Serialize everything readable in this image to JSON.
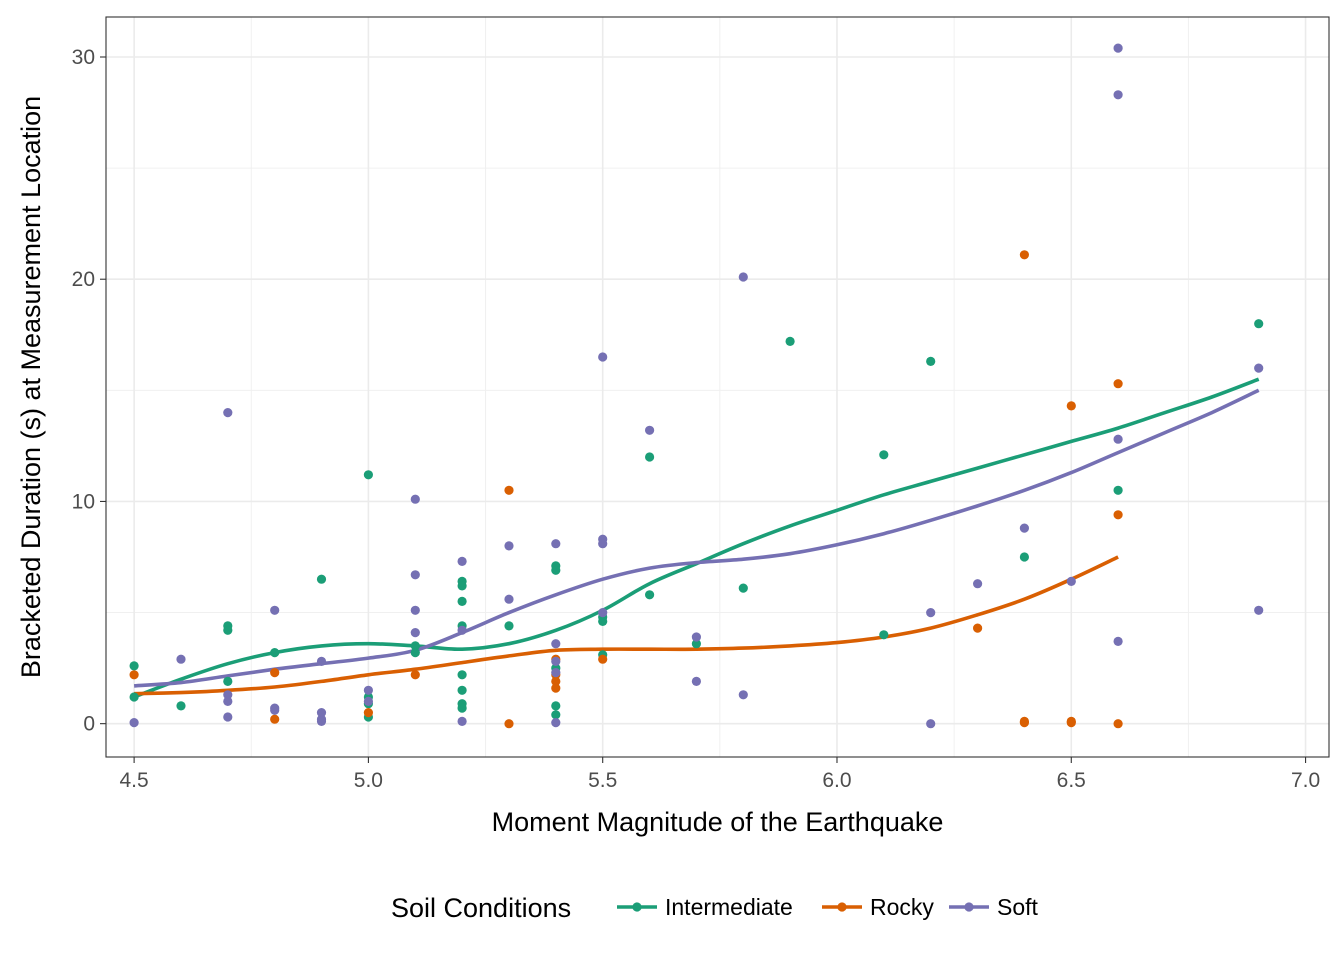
{
  "chart_data": {
    "type": "scatter",
    "xlabel": "Moment Magnitude of the Earthquake",
    "ylabel": "Bracketed Duration (s) at Measurement Location",
    "xlim": [
      4.44,
      7.05
    ],
    "ylim": [
      -1.5,
      31.8
    ],
    "x_ticks": [
      "4.5",
      "5.0",
      "5.5",
      "6.0",
      "6.5",
      "7.0"
    ],
    "y_ticks": [
      "0",
      "10",
      "20",
      "30"
    ],
    "grid": true,
    "legend": {
      "title": "Soil Conditions",
      "position": "bottom"
    },
    "series": [
      {
        "name": "Intermediate",
        "color": "#1b9e77",
        "points": [
          [
            4.5,
            2.6
          ],
          [
            4.5,
            1.2
          ],
          [
            4.6,
            0.8
          ],
          [
            4.7,
            4.4
          ],
          [
            4.7,
            4.2
          ],
          [
            4.7,
            1.9
          ],
          [
            4.8,
            3.2
          ],
          [
            4.9,
            6.5
          ],
          [
            5.0,
            11.2
          ],
          [
            5.0,
            1.2
          ],
          [
            5.0,
            0.9
          ],
          [
            5.0,
            0.3
          ],
          [
            5.1,
            3.5
          ],
          [
            5.1,
            3.2
          ],
          [
            5.2,
            6.4
          ],
          [
            5.2,
            6.2
          ],
          [
            5.2,
            5.5
          ],
          [
            5.2,
            4.4
          ],
          [
            5.2,
            2.2
          ],
          [
            5.2,
            1.5
          ],
          [
            5.2,
            0.9
          ],
          [
            5.2,
            0.7
          ],
          [
            5.3,
            4.4
          ],
          [
            5.4,
            7.1
          ],
          [
            5.4,
            6.9
          ],
          [
            5.4,
            2.5
          ],
          [
            5.4,
            0.8
          ],
          [
            5.4,
            0.4
          ],
          [
            5.5,
            4.8
          ],
          [
            5.5,
            4.6
          ],
          [
            5.5,
            3.1
          ],
          [
            5.6,
            12.0
          ],
          [
            5.6,
            5.8
          ],
          [
            5.7,
            3.6
          ],
          [
            5.8,
            6.1
          ],
          [
            5.9,
            17.2
          ],
          [
            6.1,
            12.1
          ],
          [
            6.1,
            4.0
          ],
          [
            6.2,
            16.3
          ],
          [
            6.4,
            7.5
          ],
          [
            6.6,
            10.5
          ],
          [
            6.9,
            18.0
          ]
        ],
        "smooth": [
          [
            4.5,
            1.2
          ],
          [
            4.6,
            2.0
          ],
          [
            4.7,
            2.7
          ],
          [
            4.8,
            3.2
          ],
          [
            4.9,
            3.5
          ],
          [
            5.0,
            3.6
          ],
          [
            5.1,
            3.5
          ],
          [
            5.2,
            3.35
          ],
          [
            5.3,
            3.6
          ],
          [
            5.4,
            4.2
          ],
          [
            5.5,
            5.1
          ],
          [
            5.6,
            6.3
          ],
          [
            5.7,
            7.2
          ],
          [
            5.8,
            8.1
          ],
          [
            5.9,
            8.9
          ],
          [
            6.0,
            9.6
          ],
          [
            6.1,
            10.3
          ],
          [
            6.2,
            10.9
          ],
          [
            6.3,
            11.5
          ],
          [
            6.4,
            12.1
          ],
          [
            6.5,
            12.7
          ],
          [
            6.6,
            13.3
          ],
          [
            6.7,
            14.0
          ],
          [
            6.8,
            14.7
          ],
          [
            6.9,
            15.5
          ]
        ]
      },
      {
        "name": "Rocky",
        "color": "#d95f02",
        "points": [
          [
            4.5,
            2.2
          ],
          [
            4.8,
            2.3
          ],
          [
            4.8,
            0.2
          ],
          [
            5.0,
            0.5
          ],
          [
            5.1,
            2.2
          ],
          [
            5.3,
            10.5
          ],
          [
            5.3,
            0.0
          ],
          [
            5.4,
            2.9
          ],
          [
            5.4,
            2.2
          ],
          [
            5.4,
            1.9
          ],
          [
            5.4,
            1.6
          ],
          [
            5.5,
            2.9
          ],
          [
            6.3,
            4.3
          ],
          [
            6.4,
            21.1
          ],
          [
            6.4,
            0.1
          ],
          [
            6.4,
            0.05
          ],
          [
            6.5,
            14.3
          ],
          [
            6.5,
            0.1
          ],
          [
            6.5,
            0.05
          ],
          [
            6.6,
            15.3
          ],
          [
            6.6,
            9.4
          ],
          [
            6.6,
            0.0
          ]
        ],
        "smooth": [
          [
            4.5,
            1.35
          ],
          [
            4.6,
            1.4
          ],
          [
            4.7,
            1.5
          ],
          [
            4.8,
            1.65
          ],
          [
            4.9,
            1.9
          ],
          [
            5.0,
            2.2
          ],
          [
            5.1,
            2.45
          ],
          [
            5.2,
            2.75
          ],
          [
            5.3,
            3.05
          ],
          [
            5.4,
            3.3
          ],
          [
            5.5,
            3.35
          ],
          [
            5.6,
            3.35
          ],
          [
            5.7,
            3.35
          ],
          [
            5.8,
            3.4
          ],
          [
            5.9,
            3.5
          ],
          [
            6.0,
            3.65
          ],
          [
            6.1,
            3.9
          ],
          [
            6.2,
            4.3
          ],
          [
            6.3,
            4.9
          ],
          [
            6.4,
            5.6
          ],
          [
            6.5,
            6.5
          ],
          [
            6.6,
            7.5
          ]
        ]
      },
      {
        "name": "Soft",
        "color": "#7570b3",
        "points": [
          [
            4.5,
            0.05
          ],
          [
            4.6,
            2.9
          ],
          [
            4.7,
            14.0
          ],
          [
            4.7,
            1.3
          ],
          [
            4.7,
            1.0
          ],
          [
            4.7,
            0.3
          ],
          [
            4.8,
            5.1
          ],
          [
            4.8,
            0.7
          ],
          [
            4.8,
            0.6
          ],
          [
            4.9,
            2.8
          ],
          [
            4.9,
            0.5
          ],
          [
            4.9,
            0.2
          ],
          [
            4.9,
            0.1
          ],
          [
            5.0,
            1.5
          ],
          [
            5.0,
            1.0
          ],
          [
            5.1,
            10.1
          ],
          [
            5.1,
            6.7
          ],
          [
            5.1,
            5.1
          ],
          [
            5.1,
            4.1
          ],
          [
            5.2,
            7.3
          ],
          [
            5.2,
            4.2
          ],
          [
            5.2,
            0.1
          ],
          [
            5.3,
            8.0
          ],
          [
            5.3,
            5.6
          ],
          [
            5.4,
            8.1
          ],
          [
            5.4,
            3.6
          ],
          [
            5.4,
            2.8
          ],
          [
            5.4,
            2.3
          ],
          [
            5.4,
            0.05
          ],
          [
            5.5,
            16.5
          ],
          [
            5.5,
            8.3
          ],
          [
            5.5,
            8.1
          ],
          [
            5.5,
            5.0
          ],
          [
            5.6,
            13.2
          ],
          [
            5.7,
            3.9
          ],
          [
            5.7,
            1.9
          ],
          [
            5.8,
            20.1
          ],
          [
            5.8,
            1.3
          ],
          [
            6.2,
            5.0
          ],
          [
            6.2,
            0.0
          ],
          [
            6.3,
            6.3
          ],
          [
            6.4,
            8.8
          ],
          [
            6.5,
            6.4
          ],
          [
            6.6,
            30.4
          ],
          [
            6.6,
            28.3
          ],
          [
            6.6,
            12.8
          ],
          [
            6.6,
            3.7
          ],
          [
            6.9,
            16.0
          ],
          [
            6.9,
            5.1
          ]
        ],
        "smooth": [
          [
            4.5,
            1.7
          ],
          [
            4.6,
            1.85
          ],
          [
            4.7,
            2.15
          ],
          [
            4.8,
            2.45
          ],
          [
            4.9,
            2.7
          ],
          [
            5.0,
            2.95
          ],
          [
            5.1,
            3.3
          ],
          [
            5.2,
            4.1
          ],
          [
            5.3,
            5.0
          ],
          [
            5.4,
            5.8
          ],
          [
            5.5,
            6.5
          ],
          [
            5.6,
            7.0
          ],
          [
            5.7,
            7.25
          ],
          [
            5.8,
            7.4
          ],
          [
            5.9,
            7.65
          ],
          [
            6.0,
            8.05
          ],
          [
            6.1,
            8.55
          ],
          [
            6.2,
            9.15
          ],
          [
            6.3,
            9.8
          ],
          [
            6.4,
            10.5
          ],
          [
            6.5,
            11.3
          ],
          [
            6.6,
            12.2
          ],
          [
            6.7,
            13.1
          ],
          [
            6.8,
            14.0
          ],
          [
            6.9,
            15.0
          ]
        ]
      }
    ]
  }
}
